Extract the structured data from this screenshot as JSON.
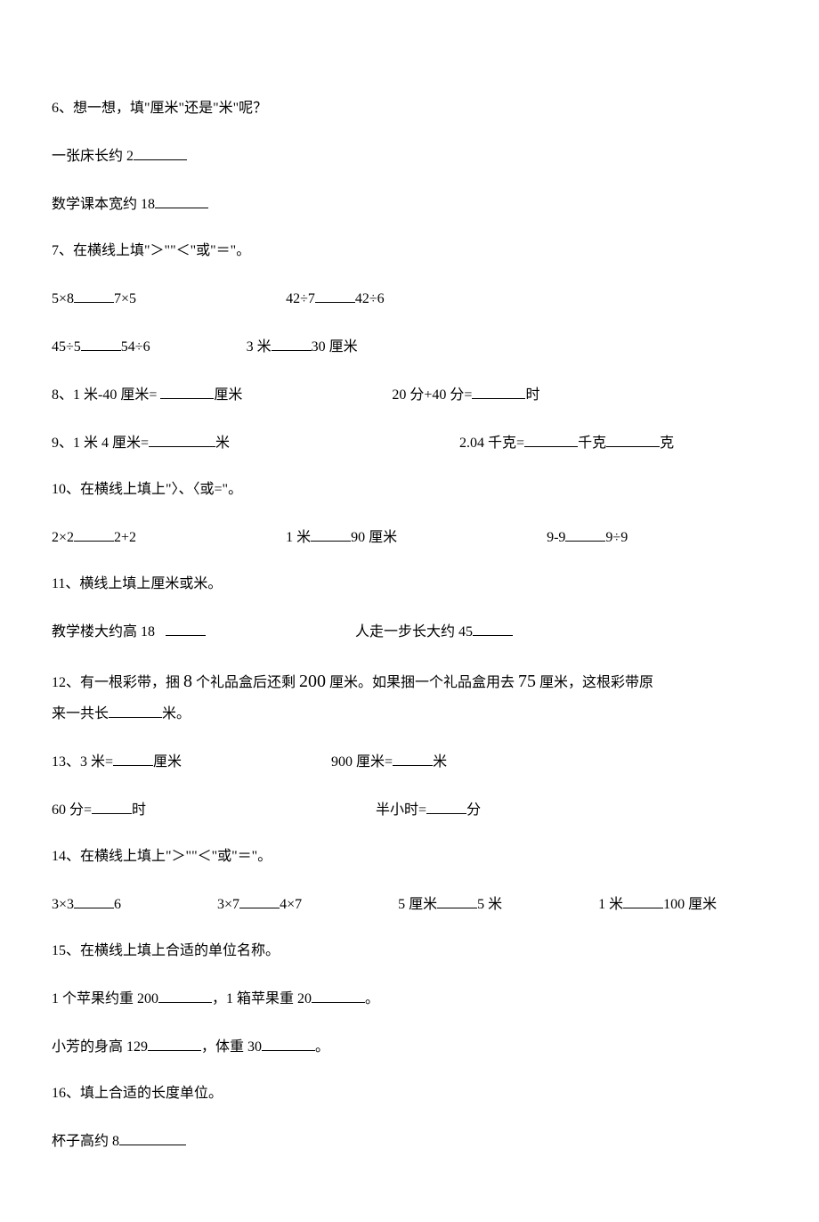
{
  "q6": {
    "prompt": "6、想一想，填\"厘米\"还是\"米\"呢？",
    "line1": "一张床长约 2",
    "line2": "数学课本宽约 18"
  },
  "q7": {
    "prompt": "7、在横线上填\"＞\"\"＜\"或\"＝\"。",
    "a1_left": "5×8",
    "a1_right": "7×5",
    "a2_left": "42÷7",
    "a2_right": "42÷6",
    "b1_left": "45÷5",
    "b1_right": "54÷6",
    "b2_left": "3 米",
    "b2_right": "30 厘米"
  },
  "q8": {
    "a_label": "8、1 米-40 厘米= ",
    "a_unit": "厘米",
    "b_label": "20 分+40 分=",
    "b_unit": "时"
  },
  "q9": {
    "a_label": "9、1 米 4 厘米=",
    "a_unit": "米",
    "b_label": "2.04 千克=",
    "b_unit1": "千克",
    "b_unit2": "克"
  },
  "q10": {
    "prompt": "10、在横线上填上\"〉、〈或=\"。",
    "a_left": "2×2",
    "a_right": "2+2",
    "b_left": "1 米",
    "b_right": "90 厘米",
    "c_left": "9-9",
    "c_right": "9÷9"
  },
  "q11": {
    "prompt": "11、横线上填上厘米或米。",
    "a": "教学楼大约高 18",
    "b": "人走一步长大约 45"
  },
  "q12": {
    "line1_a": "12、有一根彩带，捆 ",
    "num1": "8",
    "line1_b": " 个礼品盒后还剩 ",
    "num2": "200",
    "line1_c": " 厘米。如果捆一个礼品盒用去 ",
    "num3": "75",
    "line1_d": " 厘米，这根彩带原",
    "line2_a": "来一共长",
    "line2_b": "米。"
  },
  "q13": {
    "a_label": "13、3 米=",
    "a_unit": "厘米",
    "b_label": "900 厘米=",
    "b_unit": "米",
    "c_label": "60 分=",
    "c_unit": "时",
    "d_label": "半小时=",
    "d_unit": "分"
  },
  "q14": {
    "prompt": "14、在横线上填上\"＞\"\"＜\"或\"＝\"。",
    "a_left": "3×3",
    "a_right": "6",
    "b_left": "3×7",
    "b_right": "4×7",
    "c_left": "5 厘米",
    "c_right": "5 米",
    "d_left": "1 米",
    "d_right": "100 厘米"
  },
  "q15": {
    "prompt": "15、在横线上填上合适的单位名称。",
    "line1_a": "1 个苹果约重 200",
    "line1_b": "，1 箱苹果重 20",
    "line1_c": "。",
    "line2_a": "小芳的身高 129",
    "line2_b": "，体重 30",
    "line2_c": "。"
  },
  "q16": {
    "prompt": "16、填上合适的长度单位。",
    "a": "杯子高约 8"
  }
}
